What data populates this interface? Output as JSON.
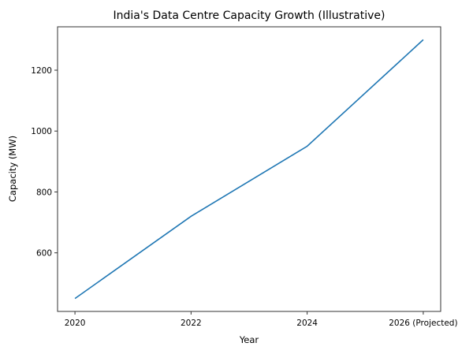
{
  "chart_data": {
    "type": "line",
    "title": "India's Data Centre Capacity Growth (Illustrative)",
    "xlabel": "Year",
    "ylabel": "Capacity (MW)",
    "categories": [
      "2020",
      "2022",
      "2024",
      "2026 (Projected)"
    ],
    "x": [
      2020,
      2022,
      2024,
      2026
    ],
    "series": [
      {
        "name": "Capacity",
        "values": [
          450,
          720,
          950,
          1300
        ],
        "color": "#1f77b4"
      }
    ],
    "yticks": [
      600,
      800,
      1000,
      1200
    ],
    "ytick_labels": [
      "600",
      "800",
      "1000",
      "1200"
    ],
    "ylim": [
      407.5,
      1342.5
    ],
    "xlim": [
      2019.7,
      2026.3
    ],
    "grid": false,
    "legend": null
  }
}
